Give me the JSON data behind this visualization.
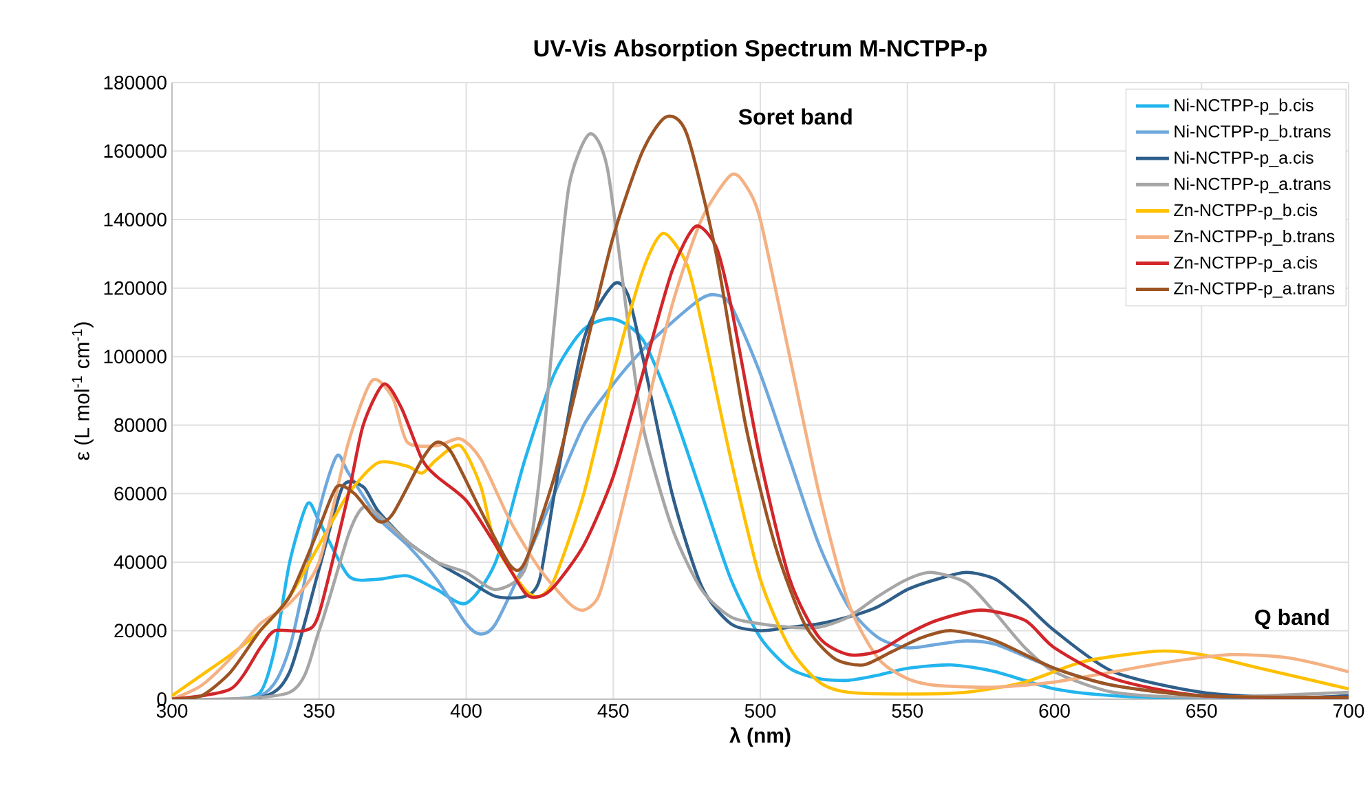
{
  "chart_data": {
    "type": "line",
    "title": "UV-Vis  Absorption  Spectrum  M-NCTPP-p",
    "xlabel": "λ (nm)",
    "ylabel": "ε  (L mol$^{-1}$ cm$^{-1}$)",
    "xlim": [
      300,
      700
    ],
    "ylim": [
      0,
      180000
    ],
    "xticks": [
      300,
      350,
      400,
      450,
      500,
      550,
      600,
      650,
      700
    ],
    "yticks": [
      0,
      20000,
      40000,
      60000,
      80000,
      100000,
      120000,
      140000,
      160000,
      180000
    ],
    "grid": true,
    "legend": "top right",
    "series": [
      {
        "name": "Ni-NCTPP-p_b.cis",
        "color": "#22b5ee",
        "x": [
          300,
          320,
          330,
          335,
          340,
          346,
          350,
          360,
          370,
          380,
          390,
          400,
          410,
          420,
          430,
          440,
          450,
          460,
          470,
          480,
          490,
          500,
          510,
          520,
          530,
          540,
          550,
          565,
          580,
          600,
          620,
          650,
          700
        ],
        "values": [
          0,
          0,
          2000,
          15000,
          40000,
          57000,
          52000,
          36000,
          35000,
          36000,
          32000,
          28000,
          40000,
          70000,
          95000,
          108000,
          111000,
          105000,
          85000,
          60000,
          35000,
          18000,
          9000,
          6000,
          5500,
          7000,
          9000,
          10000,
          8000,
          3000,
          1000,
          200,
          0
        ]
      },
      {
        "name": "Ni-NCTPP-p_b.trans",
        "color": "#6fa8dc",
        "x": [
          300,
          330,
          340,
          350,
          356,
          360,
          370,
          380,
          390,
          400,
          405,
          410,
          420,
          430,
          440,
          450,
          460,
          470,
          480,
          485,
          490,
          500,
          510,
          520,
          530,
          540,
          550,
          560,
          570,
          580,
          600,
          620,
          650,
          700
        ],
        "values": [
          0,
          1000,
          15000,
          55000,
          71000,
          66000,
          53000,
          45000,
          35000,
          22000,
          19000,
          22000,
          40000,
          60000,
          80000,
          92000,
          102000,
          110000,
          117000,
          118000,
          115000,
          95000,
          70000,
          45000,
          27000,
          18000,
          15000,
          16000,
          17000,
          16000,
          9000,
          4000,
          1000,
          0
        ]
      },
      {
        "name": "Ni-NCTPP-p_a.cis",
        "color": "#2f5f8a",
        "x": [
          300,
          330,
          340,
          350,
          358,
          365,
          370,
          380,
          390,
          400,
          410,
          420,
          425,
          430,
          440,
          450,
          455,
          460,
          470,
          480,
          490,
          500,
          510,
          520,
          530,
          540,
          550,
          560,
          570,
          580,
          590,
          600,
          620,
          650,
          680,
          700
        ],
        "values": [
          0,
          500,
          8000,
          38000,
          62000,
          62000,
          55000,
          46000,
          40000,
          35000,
          30000,
          30000,
          35000,
          60000,
          105000,
          121000,
          118000,
          100000,
          60000,
          33000,
          22000,
          20000,
          21000,
          22000,
          24000,
          27000,
          32000,
          35000,
          37000,
          35000,
          28000,
          20000,
          8000,
          2000,
          500,
          1000
        ]
      },
      {
        "name": "Ni-NCTPP-p_a.trans",
        "color": "#a6a6a6",
        "x": [
          300,
          340,
          350,
          360,
          365,
          370,
          380,
          390,
          400,
          410,
          420,
          425,
          430,
          435,
          442,
          448,
          455,
          460,
          470,
          480,
          490,
          500,
          510,
          520,
          530,
          540,
          550,
          558,
          570,
          580,
          590,
          600,
          620,
          650,
          700
        ],
        "values": [
          0,
          2000,
          20000,
          48000,
          56000,
          54000,
          46000,
          40000,
          37000,
          32000,
          38000,
          65000,
          110000,
          150000,
          165000,
          155000,
          110000,
          80000,
          50000,
          32000,
          24000,
          22000,
          21000,
          21000,
          24000,
          30000,
          35000,
          37000,
          34000,
          25000,
          15000,
          8000,
          2000,
          500,
          2000
        ]
      },
      {
        "name": "Zn-NCTPP-p_b.cis",
        "color": "#ffc000",
        "x": [
          300,
          310,
          320,
          330,
          340,
          350,
          360,
          370,
          380,
          385,
          390,
          398,
          405,
          410,
          420,
          425,
          430,
          440,
          450,
          460,
          467,
          475,
          480,
          490,
          500,
          510,
          520,
          530,
          550,
          570,
          590,
          610,
          635,
          650,
          670,
          690,
          700
        ],
        "values": [
          1000,
          7000,
          13000,
          20000,
          30000,
          45000,
          60000,
          69000,
          68000,
          66000,
          70000,
          74000,
          62000,
          45000,
          32000,
          30000,
          35000,
          60000,
          95000,
          125000,
          136000,
          127000,
          110000,
          70000,
          35000,
          15000,
          5000,
          2000,
          1500,
          2000,
          5000,
          11000,
          14000,
          13000,
          9000,
          5000,
          3000
        ]
      },
      {
        "name": "Zn-NCTPP-p_b.trans",
        "color": "#f4b183",
        "x": [
          300,
          310,
          320,
          330,
          340,
          350,
          360,
          368,
          375,
          380,
          390,
          398,
          405,
          415,
          425,
          435,
          440,
          445,
          450,
          460,
          470,
          480,
          490,
          495,
          500,
          510,
          520,
          530,
          540,
          550,
          560,
          580,
          600,
          620,
          640,
          660,
          680,
          700
        ],
        "values": [
          0,
          4000,
          12000,
          22000,
          28000,
          40000,
          75000,
          93000,
          88000,
          75000,
          74000,
          76000,
          70000,
          52000,
          38000,
          28000,
          26000,
          30000,
          45000,
          80000,
          115000,
          140000,
          153000,
          150000,
          140000,
          100000,
          60000,
          28000,
          12000,
          6000,
          4000,
          3500,
          5000,
          8000,
          11000,
          13000,
          12000,
          8000
        ]
      },
      {
        "name": "Zn-NCTPP-p_a.cis",
        "color": "#d2262a",
        "x": [
          300,
          320,
          330,
          335,
          345,
          350,
          360,
          365,
          372,
          378,
          385,
          390,
          400,
          410,
          420,
          425,
          430,
          440,
          450,
          460,
          470,
          478,
          485,
          490,
          500,
          510,
          520,
          530,
          540,
          550,
          560,
          575,
          590,
          600,
          620,
          650,
          700
        ],
        "values": [
          0,
          3000,
          15000,
          20000,
          20000,
          25000,
          60000,
          80000,
          92000,
          85000,
          70000,
          65000,
          58000,
          45000,
          31000,
          30000,
          33000,
          45000,
          65000,
          95000,
          125000,
          138000,
          132000,
          115000,
          70000,
          35000,
          18000,
          13000,
          14000,
          19000,
          23000,
          26000,
          23000,
          15000,
          6000,
          1000,
          500
        ]
      },
      {
        "name": "Zn-NCTPP-p_a.trans",
        "color": "#9c5424",
        "x": [
          300,
          310,
          320,
          330,
          340,
          350,
          356,
          362,
          370,
          375,
          385,
          390,
          395,
          405,
          415,
          420,
          430,
          440,
          450,
          460,
          468,
          475,
          485,
          495,
          505,
          515,
          525,
          535,
          545,
          555,
          565,
          580,
          600,
          620,
          650,
          700
        ],
        "values": [
          0,
          1000,
          8000,
          20000,
          30000,
          50000,
          62000,
          60000,
          52000,
          54000,
          70000,
          75000,
          72000,
          55000,
          39000,
          40000,
          65000,
          100000,
          135000,
          160000,
          170000,
          165000,
          130000,
          80000,
          45000,
          22000,
          12000,
          10000,
          14000,
          18000,
          20000,
          17000,
          9000,
          4000,
          1000,
          500
        ]
      }
    ],
    "annotations": [
      "Soret band",
      "Q band"
    ]
  }
}
